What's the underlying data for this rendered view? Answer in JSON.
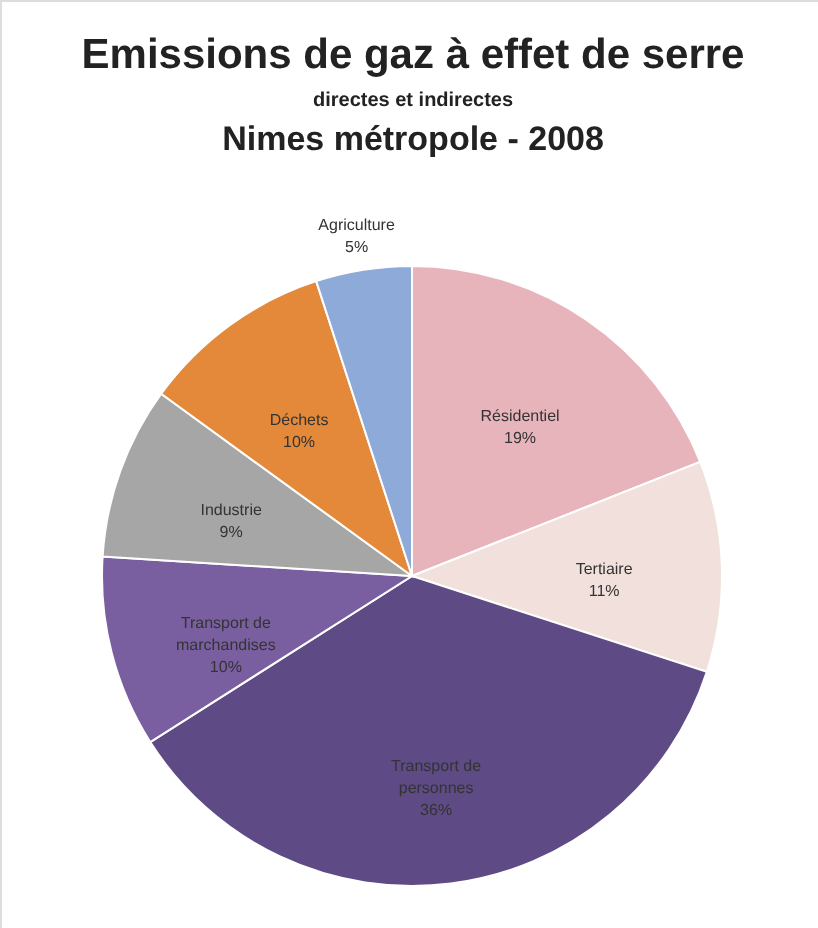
{
  "chart_data": {
    "type": "pie",
    "title": "Emissions de gaz à effet de serre",
    "subtitle": "directes et indirectes",
    "annotations": [
      "Nimes métropole - 2008"
    ],
    "categories": [
      "Résidentiel",
      "Tertiaire",
      "Transport de personnes",
      "Transport de marchandises",
      "Industrie",
      "Déchets",
      "Agriculture"
    ],
    "values": [
      19,
      11,
      36,
      10,
      9,
      10,
      5
    ],
    "value_labels": [
      "19%",
      "11%",
      "36%",
      "10%",
      "9%",
      "10%",
      "5%"
    ],
    "colors": [
      "#e8b4bc",
      "#f2e0dc",
      "#5e4a85",
      "#7a5fa0",
      "#a6a6a6",
      "#e4893a",
      "#8eaad8"
    ]
  }
}
